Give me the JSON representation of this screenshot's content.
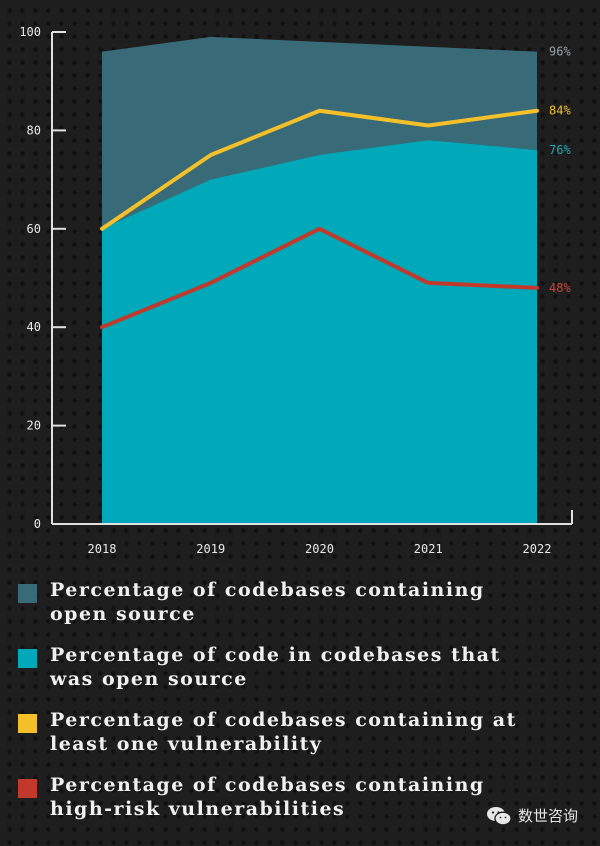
{
  "chart_data": {
    "type": "area",
    "title": "",
    "xlabel": "",
    "ylabel": "",
    "categories": [
      "2018",
      "2019",
      "2020",
      "2021",
      "2022"
    ],
    "ylim": [
      0,
      100
    ],
    "yticks": [
      0,
      20,
      40,
      60,
      80,
      100
    ],
    "grid": false,
    "legend_position": "bottom",
    "series": [
      {
        "name": "Percentage of codebases containing open source",
        "kind": "area",
        "color": "#386a77",
        "values": [
          96,
          99,
          98,
          97,
          96
        ],
        "end_label": "96%",
        "end_label_color": "#9aa3a8"
      },
      {
        "name": "Percentage of code in codebases that was open source",
        "kind": "area",
        "color": "#00a9b9",
        "values": [
          60,
          70,
          75,
          78,
          76
        ],
        "end_label": "76%",
        "end_label_color": "#19a9ba"
      },
      {
        "name": "Percentage of codebases containing at least one vulnerability",
        "kind": "line",
        "color": "#f3c02a",
        "values": [
          60,
          75,
          84,
          81,
          84
        ],
        "end_label": "84%",
        "end_label_color": "#f3c02a"
      },
      {
        "name": "Percentage of codebases containing high-risk vulnerabilities",
        "kind": "line",
        "color": "#c0392b",
        "values": [
          40,
          49,
          60,
          49,
          48
        ],
        "end_label": "48%",
        "end_label_color": "#c9453a"
      }
    ]
  },
  "legend": [
    {
      "label": "Percentage of codebases containing\nopen source",
      "color": "#386a77"
    },
    {
      "label": "Percentage of code in codebases that\nwas open source",
      "color": "#00a9b9"
    },
    {
      "label": "Percentage of codebases containing at\nleast one vulnerability",
      "color": "#f3c02a"
    },
    {
      "label": "Percentage of codebases containing\nhigh-risk vulnerabilities",
      "color": "#c0392b"
    }
  ],
  "watermark": {
    "text": "数世咨询",
    "icon": "wechat-icon"
  }
}
